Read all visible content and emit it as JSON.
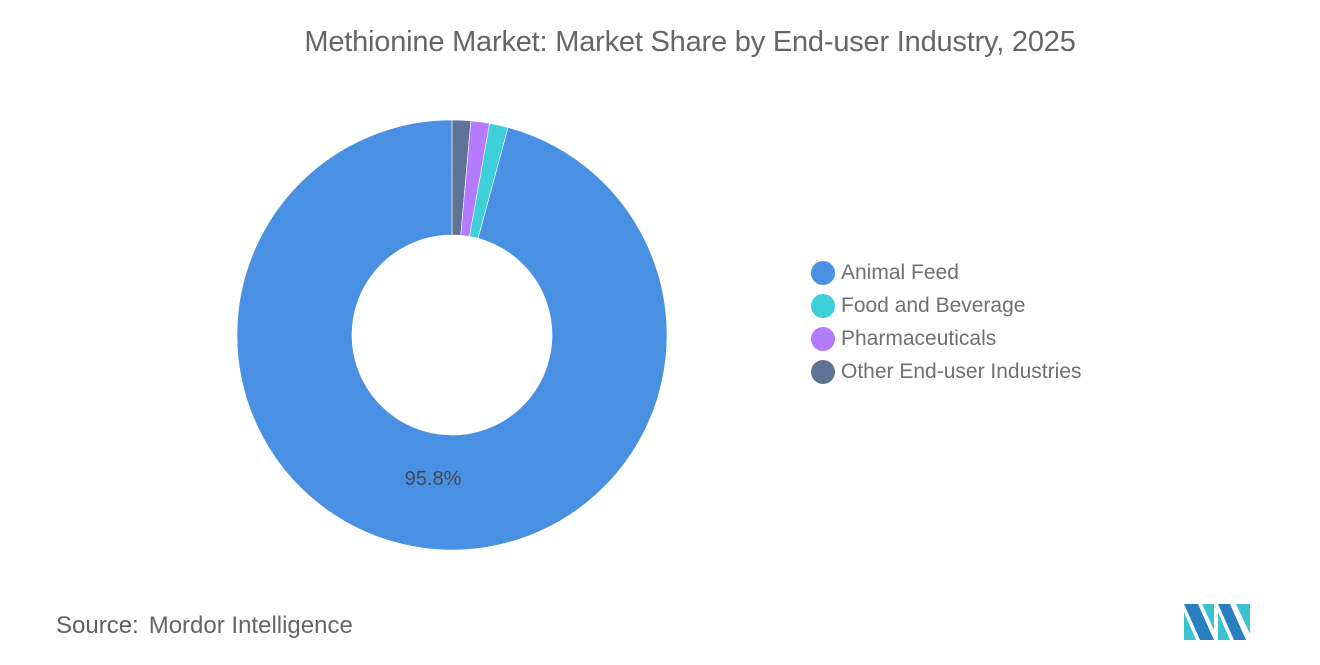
{
  "title": "Methionine Market: Market Share by End-user Industry, 2025",
  "source": {
    "label": "Source:",
    "value": "Mordor Intelligence"
  },
  "logo": {
    "icon": "mordor-intelligence-logo-icon",
    "colors": [
      "#2a7fc1",
      "#3bc4cf"
    ]
  },
  "legend": {
    "items": [
      {
        "label": "Animal Feed",
        "color": "#4a90e2"
      },
      {
        "label": "Food and Beverage",
        "color": "#3ecfd8"
      },
      {
        "label": "Pharmaceuticals",
        "color": "#b57bff"
      },
      {
        "label": "Other End-user Industries",
        "color": "#5f7396"
      }
    ]
  },
  "labels": {
    "animal_feed": "95.8%"
  },
  "chart_data": {
    "type": "pie",
    "subtype": "donut",
    "title": "Methionine Market: Market Share by End-user Industry, 2025",
    "categories": [
      "Animal Feed",
      "Food and Beverage",
      "Pharmaceuticals",
      "Other End-user Industries"
    ],
    "values": [
      95.8,
      1.4,
      1.4,
      1.4
    ],
    "unit": "%",
    "colors": [
      "#4a90e2",
      "#3ecfd8",
      "#b57bff",
      "#5f7396"
    ],
    "data_labels": [
      {
        "category": "Animal Feed",
        "text": "95.8%"
      }
    ],
    "legend_position": "right",
    "start_angle": "12 o'clock",
    "slice_order_clockwise_from_top": [
      "Other End-user Industries",
      "Pharmaceuticals",
      "Food and Beverage",
      "Animal Feed"
    ],
    "source": "Mordor Intelligence"
  }
}
